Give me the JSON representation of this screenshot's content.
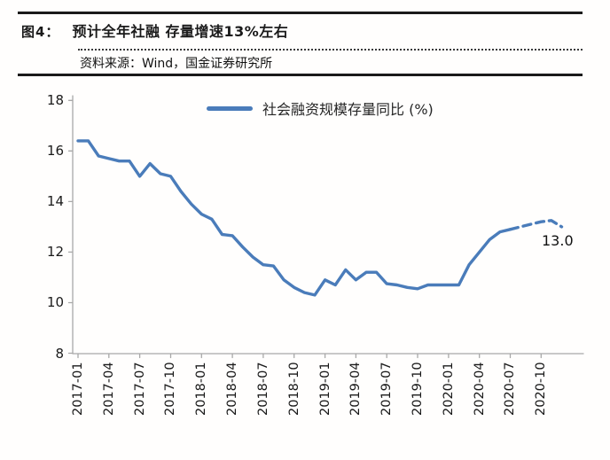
{
  "header": {
    "figure_label": "图4：",
    "title": "预计全年社融 存量增速13%左右",
    "source": "资料来源：Wind，国金证券研究所"
  },
  "chart_data": {
    "type": "line",
    "grid": false,
    "legend_position": "top",
    "ylim": [
      8,
      18
    ],
    "yticks": [
      8,
      10,
      12,
      14,
      16,
      18
    ],
    "xtick_every_months": 3,
    "x": [
      "2017-01",
      "2017-02",
      "2017-03",
      "2017-04",
      "2017-05",
      "2017-06",
      "2017-07",
      "2017-08",
      "2017-09",
      "2017-10",
      "2017-11",
      "2017-12",
      "2018-01",
      "2018-02",
      "2018-03",
      "2018-04",
      "2018-05",
      "2018-06",
      "2018-07",
      "2018-08",
      "2018-09",
      "2018-10",
      "2018-11",
      "2018-12",
      "2019-01",
      "2019-02",
      "2019-03",
      "2019-04",
      "2019-05",
      "2019-06",
      "2019-07",
      "2019-08",
      "2019-09",
      "2019-10",
      "2019-11",
      "2019-12",
      "2020-01",
      "2020-02",
      "2020-03",
      "2020-04",
      "2020-05",
      "2020-06",
      "2020-07",
      "2020-08",
      "2020-09",
      "2020-10",
      "2020-11",
      "2020-12"
    ],
    "series": [
      {
        "name": "社会融资规模存量同比 (%)",
        "color": "#4a7cba",
        "values": [
          16.4,
          16.4,
          15.8,
          15.7,
          15.6,
          15.6,
          15.0,
          15.5,
          15.1,
          15.0,
          14.4,
          13.9,
          13.5,
          13.3,
          12.7,
          12.65,
          12.2,
          11.8,
          11.5,
          11.45,
          10.9,
          10.6,
          10.4,
          10.3,
          10.9,
          10.7,
          11.3,
          10.9,
          11.2,
          11.2,
          10.75,
          10.7,
          10.6,
          10.55,
          10.7,
          10.7,
          10.7,
          10.7,
          11.5,
          12.0,
          12.5,
          12.8,
          12.9,
          13.0,
          13.1,
          13.2,
          13.25,
          13.0
        ],
        "solid_until": "2020-07",
        "dashed_forecast_from": "2020-08"
      }
    ],
    "annotation": {
      "text": "13.0",
      "x": "2020-12",
      "value": 13.0
    },
    "axis_color": "#a8a8a8"
  }
}
